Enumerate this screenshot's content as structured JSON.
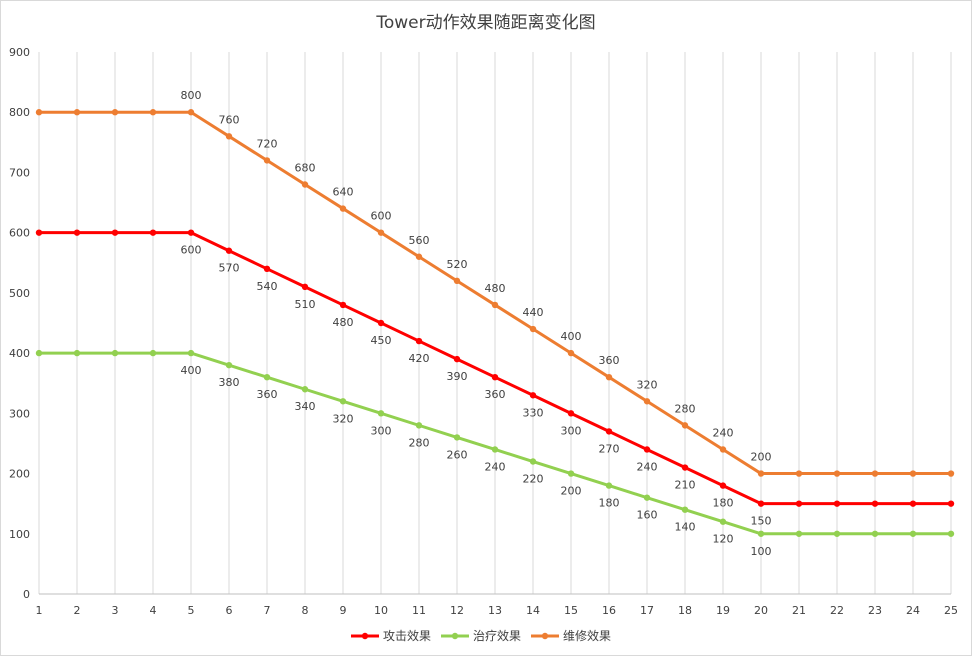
{
  "chart_data": {
    "type": "line",
    "title": "Tower动作效果随距离变化图",
    "xlabel": "",
    "ylabel": "",
    "x": [
      1,
      2,
      3,
      4,
      5,
      6,
      7,
      8,
      9,
      10,
      11,
      12,
      13,
      14,
      15,
      16,
      17,
      18,
      19,
      20,
      21,
      22,
      23,
      24,
      25
    ],
    "ylim": [
      0,
      900
    ],
    "yticks": [
      0,
      100,
      200,
      300,
      400,
      500,
      600,
      700,
      800,
      900
    ],
    "grid": "vertical",
    "legend": "bottom",
    "series": [
      {
        "name": "攻击效果",
        "color": "#ff0000",
        "values": [
          600,
          600,
          600,
          600,
          600,
          570,
          540,
          510,
          480,
          450,
          420,
          390,
          360,
          330,
          300,
          270,
          240,
          210,
          180,
          150,
          150,
          150,
          150,
          150,
          150
        ],
        "label_from": 5,
        "label_to": 20,
        "label_pos": "below"
      },
      {
        "name": "治疗效果",
        "color": "#92d050",
        "values": [
          400,
          400,
          400,
          400,
          400,
          380,
          360,
          340,
          320,
          300,
          280,
          260,
          240,
          220,
          200,
          180,
          160,
          140,
          120,
          100,
          100,
          100,
          100,
          100,
          100
        ],
        "label_from": 5,
        "label_to": 20,
        "label_pos": "below"
      },
      {
        "name": "维修效果",
        "color": "#ed7d31",
        "values": [
          800,
          800,
          800,
          800,
          800,
          760,
          720,
          680,
          640,
          600,
          560,
          520,
          480,
          440,
          400,
          360,
          320,
          280,
          240,
          200,
          200,
          200,
          200,
          200,
          200
        ],
        "label_from": 5,
        "label_to": 20,
        "label_pos": "above"
      }
    ]
  }
}
